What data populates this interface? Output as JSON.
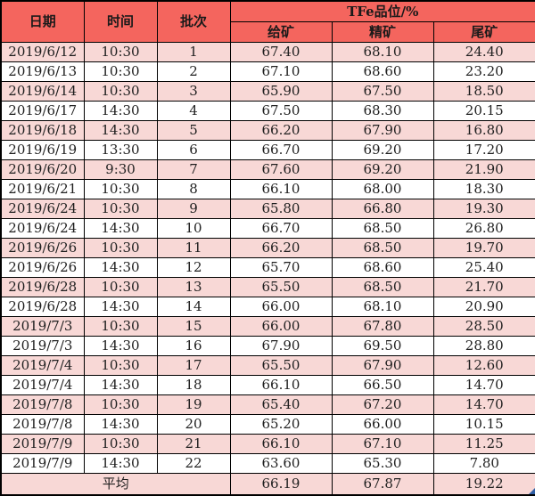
{
  "chart_data": {
    "type": "table",
    "header_group_label": "TFe品位/%",
    "columns": [
      "日期",
      "时间",
      "批次",
      "给矿",
      "精矿",
      "尾矿"
    ],
    "rows": [
      [
        "2019/6/12",
        "10:30",
        "1",
        "67.40",
        "68.10",
        "24.40"
      ],
      [
        "2019/6/13",
        "10:30",
        "2",
        "67.10",
        "68.60",
        "23.20"
      ],
      [
        "2019/6/14",
        "10:30",
        "3",
        "65.90",
        "67.50",
        "18.50"
      ],
      [
        "2019/6/17",
        "14:30",
        "4",
        "67.50",
        "68.30",
        "20.15"
      ],
      [
        "2019/6/18",
        "14:30",
        "5",
        "66.20",
        "67.90",
        "16.80"
      ],
      [
        "2019/6/19",
        "13:30",
        "6",
        "66.70",
        "69.20",
        "17.20"
      ],
      [
        "2019/6/20",
        "9:30",
        "7",
        "67.60",
        "69.20",
        "21.90"
      ],
      [
        "2019/6/21",
        "10:30",
        "8",
        "66.10",
        "68.00",
        "18.30"
      ],
      [
        "2019/6/24",
        "10:30",
        "9",
        "65.80",
        "66.80",
        "19.30"
      ],
      [
        "2019/6/24",
        "14:30",
        "10",
        "66.70",
        "68.50",
        "26.80"
      ],
      [
        "2019/6/26",
        "10:30",
        "11",
        "66.20",
        "68.50",
        "19.70"
      ],
      [
        "2019/6/26",
        "14:30",
        "12",
        "65.70",
        "68.60",
        "25.40"
      ],
      [
        "2019/6/28",
        "10:30",
        "13",
        "65.50",
        "68.50",
        "21.70"
      ],
      [
        "2019/6/28",
        "14:30",
        "14",
        "66.00",
        "68.10",
        "20.90"
      ],
      [
        "2019/7/3",
        "10:30",
        "15",
        "66.00",
        "67.80",
        "28.50"
      ],
      [
        "2019/7/3",
        "14:30",
        "16",
        "67.90",
        "69.50",
        "28.80"
      ],
      [
        "2019/7/4",
        "10:30",
        "17",
        "65.50",
        "67.90",
        "12.60"
      ],
      [
        "2019/7/4",
        "14:30",
        "18",
        "66.10",
        "66.50",
        "14.70"
      ],
      [
        "2019/7/8",
        "10:30",
        "19",
        "65.40",
        "67.20",
        "14.70"
      ],
      [
        "2019/7/8",
        "14:30",
        "20",
        "65.20",
        "66.00",
        "10.15"
      ],
      [
        "2019/7/9",
        "10:30",
        "21",
        "66.10",
        "67.10",
        "11.25"
      ],
      [
        "2019/7/9",
        "14:30",
        "22",
        "63.60",
        "65.30",
        "7.80"
      ]
    ],
    "average_row": [
      "平均",
      "66.19",
      "67.87",
      "19.22"
    ]
  },
  "colors": {
    "header_background": "#f4655e",
    "row_pink": "#f8d8d6",
    "row_white": "#ffffff",
    "border": "#000000",
    "text": "#1f1f1f",
    "fill_handle_blue": "#2f5fa5"
  }
}
